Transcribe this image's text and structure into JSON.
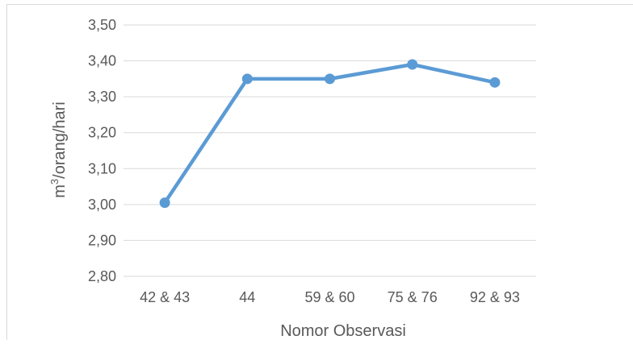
{
  "chart_data": {
    "type": "line",
    "categories": [
      "42 & 43",
      "44",
      "59 & 60",
      "75 & 76",
      "92 & 93"
    ],
    "series": [
      {
        "values": [
          3.005,
          3.35,
          3.35,
          3.39,
          3.34
        ],
        "color": "#5b9bd5"
      }
    ],
    "title": "",
    "xlabel": "Nomor Observasi",
    "ylabel_base": "m",
    "ylabel_sup": "3",
    "ylabel_rest": "/orang/hari",
    "ylim": [
      2.8,
      3.5
    ],
    "yticks": [
      "3,50",
      "3,40",
      "3,30",
      "3,20",
      "3,10",
      "3,00",
      "2,90",
      "2,80"
    ],
    "grid": true,
    "legend": "none",
    "gridline_color": "#d9d9d9",
    "text_color": "#595959"
  }
}
